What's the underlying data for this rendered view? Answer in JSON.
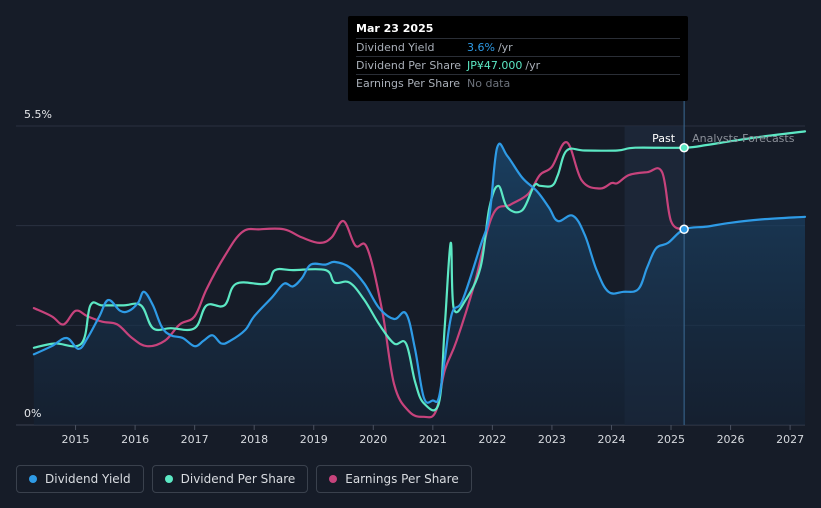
{
  "tooltip": {
    "date": "Mar 23 2025",
    "rows": [
      {
        "label": "Dividend Yield",
        "value": "3.6%",
        "unit": "/yr",
        "color": "#2e9be6"
      },
      {
        "label": "Dividend Per Share",
        "value": "JP¥47.000",
        "unit": "/yr",
        "color": "#5ce8c4"
      },
      {
        "label": "Earnings Per Share",
        "value": "No data",
        "unit": "",
        "color": "#6d737c"
      }
    ]
  },
  "past_label": "Past",
  "forecast_label": "Analysts Forecasts",
  "legend": [
    {
      "label": "Dividend Yield",
      "color": "#2e9be6"
    },
    {
      "label": "Dividend Per Share",
      "color": "#5ce8c4"
    },
    {
      "label": "Earnings Per Share",
      "color": "#c7437c"
    }
  ],
  "chart_data": {
    "type": "line",
    "x_ticks": [
      "2015",
      "2016",
      "2017",
      "2018",
      "2019",
      "2020",
      "2021",
      "2022",
      "2023",
      "2024",
      "2025",
      "2026",
      "2027"
    ],
    "y_ticks": [
      "5.5%",
      "0%"
    ],
    "ylim": [
      0,
      5.5
    ],
    "xlim": [
      2014.0,
      2027.25
    ],
    "grid": true,
    "legend_position": "bottom-left",
    "past_end": 2025.22,
    "forecast_band_start": 2024.22,
    "series": [
      {
        "name": "Dividend Yield",
        "color": "#2e9be6",
        "area": true,
        "points": [
          [
            2014.3,
            1.3
          ],
          [
            2014.6,
            1.45
          ],
          [
            2014.85,
            1.6
          ],
          [
            2015.05,
            1.4
          ],
          [
            2015.2,
            1.6
          ],
          [
            2015.4,
            2.0
          ],
          [
            2015.55,
            2.3
          ],
          [
            2015.75,
            2.1
          ],
          [
            2015.9,
            2.1
          ],
          [
            2016.05,
            2.25
          ],
          [
            2016.15,
            2.45
          ],
          [
            2016.3,
            2.2
          ],
          [
            2016.45,
            1.8
          ],
          [
            2016.6,
            1.65
          ],
          [
            2016.8,
            1.6
          ],
          [
            2017.0,
            1.45
          ],
          [
            2017.15,
            1.55
          ],
          [
            2017.3,
            1.65
          ],
          [
            2017.45,
            1.5
          ],
          [
            2017.6,
            1.55
          ],
          [
            2017.85,
            1.75
          ],
          [
            2018.0,
            2.0
          ],
          [
            2018.3,
            2.35
          ],
          [
            2018.5,
            2.6
          ],
          [
            2018.65,
            2.55
          ],
          [
            2018.8,
            2.7
          ],
          [
            2018.95,
            2.95
          ],
          [
            2019.2,
            2.95
          ],
          [
            2019.35,
            3.0
          ],
          [
            2019.6,
            2.9
          ],
          [
            2019.85,
            2.6
          ],
          [
            2020.1,
            2.15
          ],
          [
            2020.35,
            1.95
          ],
          [
            2020.55,
            2.05
          ],
          [
            2020.7,
            1.4
          ],
          [
            2020.85,
            0.5
          ],
          [
            2021.0,
            0.45
          ],
          [
            2021.1,
            0.5
          ],
          [
            2021.2,
            1.2
          ],
          [
            2021.32,
            2.05
          ],
          [
            2021.5,
            2.3
          ],
          [
            2021.8,
            3.3
          ],
          [
            2021.95,
            3.85
          ],
          [
            2022.08,
            5.1
          ],
          [
            2022.25,
            4.95
          ],
          [
            2022.5,
            4.55
          ],
          [
            2022.75,
            4.3
          ],
          [
            2022.95,
            4.0
          ],
          [
            2023.1,
            3.75
          ],
          [
            2023.35,
            3.85
          ],
          [
            2023.55,
            3.5
          ],
          [
            2023.75,
            2.85
          ],
          [
            2023.95,
            2.45
          ],
          [
            2024.2,
            2.45
          ],
          [
            2024.45,
            2.5
          ],
          [
            2024.6,
            2.9
          ],
          [
            2024.75,
            3.25
          ],
          [
            2024.95,
            3.35
          ],
          [
            2025.22,
            3.6
          ],
          [
            2025.6,
            3.65
          ],
          [
            2026.0,
            3.72
          ],
          [
            2026.5,
            3.78
          ],
          [
            2027.25,
            3.83
          ]
        ]
      },
      {
        "name": "Dividend Per Share",
        "color": "#5ce8c4",
        "points": [
          [
            2014.3,
            1.42
          ],
          [
            2014.65,
            1.5
          ],
          [
            2015.1,
            1.5
          ],
          [
            2015.25,
            2.2
          ],
          [
            2015.45,
            2.2
          ],
          [
            2015.8,
            2.2
          ],
          [
            2016.1,
            2.2
          ],
          [
            2016.3,
            1.78
          ],
          [
            2016.6,
            1.78
          ],
          [
            2017.0,
            1.78
          ],
          [
            2017.2,
            2.2
          ],
          [
            2017.5,
            2.2
          ],
          [
            2017.7,
            2.6
          ],
          [
            2018.2,
            2.6
          ],
          [
            2018.35,
            2.85
          ],
          [
            2018.65,
            2.85
          ],
          [
            2019.2,
            2.85
          ],
          [
            2019.35,
            2.62
          ],
          [
            2019.6,
            2.62
          ],
          [
            2019.85,
            2.3
          ],
          [
            2020.1,
            1.85
          ],
          [
            2020.35,
            1.5
          ],
          [
            2020.55,
            1.5
          ],
          [
            2020.7,
            0.8
          ],
          [
            2020.85,
            0.4
          ],
          [
            2021.1,
            0.4
          ],
          [
            2021.2,
            1.8
          ],
          [
            2021.3,
            3.35
          ],
          [
            2021.35,
            2.15
          ],
          [
            2021.55,
            2.3
          ],
          [
            2021.8,
            2.9
          ],
          [
            2021.95,
            4.0
          ],
          [
            2022.1,
            4.4
          ],
          [
            2022.25,
            4.0
          ],
          [
            2022.5,
            3.95
          ],
          [
            2022.7,
            4.4
          ],
          [
            2022.8,
            4.4
          ],
          [
            2023.0,
            4.4
          ],
          [
            2023.1,
            4.6
          ],
          [
            2023.25,
            5.05
          ],
          [
            2023.55,
            5.05
          ],
          [
            2024.1,
            5.05
          ],
          [
            2024.4,
            5.1
          ],
          [
            2025.22,
            5.1
          ],
          [
            2025.6,
            5.15
          ],
          [
            2026.0,
            5.22
          ],
          [
            2026.5,
            5.3
          ],
          [
            2027.25,
            5.4
          ]
        ]
      },
      {
        "name": "Earnings Per Share",
        "color": "#c7437c",
        "points": [
          [
            2014.3,
            2.15
          ],
          [
            2014.6,
            2.0
          ],
          [
            2014.8,
            1.85
          ],
          [
            2015.0,
            2.1
          ],
          [
            2015.2,
            2.0
          ],
          [
            2015.45,
            1.9
          ],
          [
            2015.7,
            1.85
          ],
          [
            2015.95,
            1.6
          ],
          [
            2016.2,
            1.45
          ],
          [
            2016.5,
            1.55
          ],
          [
            2016.75,
            1.85
          ],
          [
            2017.0,
            2.0
          ],
          [
            2017.2,
            2.5
          ],
          [
            2017.5,
            3.1
          ],
          [
            2017.8,
            3.55
          ],
          [
            2018.1,
            3.6
          ],
          [
            2018.5,
            3.6
          ],
          [
            2018.8,
            3.45
          ],
          [
            2019.1,
            3.35
          ],
          [
            2019.3,
            3.45
          ],
          [
            2019.5,
            3.75
          ],
          [
            2019.7,
            3.3
          ],
          [
            2019.9,
            3.25
          ],
          [
            2020.15,
            2.1
          ],
          [
            2020.35,
            0.75
          ],
          [
            2020.6,
            0.25
          ],
          [
            2020.85,
            0.15
          ],
          [
            2021.05,
            0.25
          ],
          [
            2021.2,
            1.0
          ],
          [
            2021.4,
            1.55
          ],
          [
            2021.7,
            2.6
          ],
          [
            2022.0,
            3.85
          ],
          [
            2022.3,
            4.05
          ],
          [
            2022.6,
            4.25
          ],
          [
            2022.8,
            4.6
          ],
          [
            2023.0,
            4.75
          ],
          [
            2023.25,
            5.2
          ],
          [
            2023.5,
            4.5
          ],
          [
            2023.8,
            4.35
          ],
          [
            2024.0,
            4.45
          ],
          [
            2024.1,
            4.45
          ],
          [
            2024.3,
            4.6
          ],
          [
            2024.6,
            4.65
          ],
          [
            2024.85,
            4.65
          ],
          [
            2025.0,
            3.75
          ],
          [
            2025.22,
            3.6
          ]
        ]
      }
    ]
  }
}
